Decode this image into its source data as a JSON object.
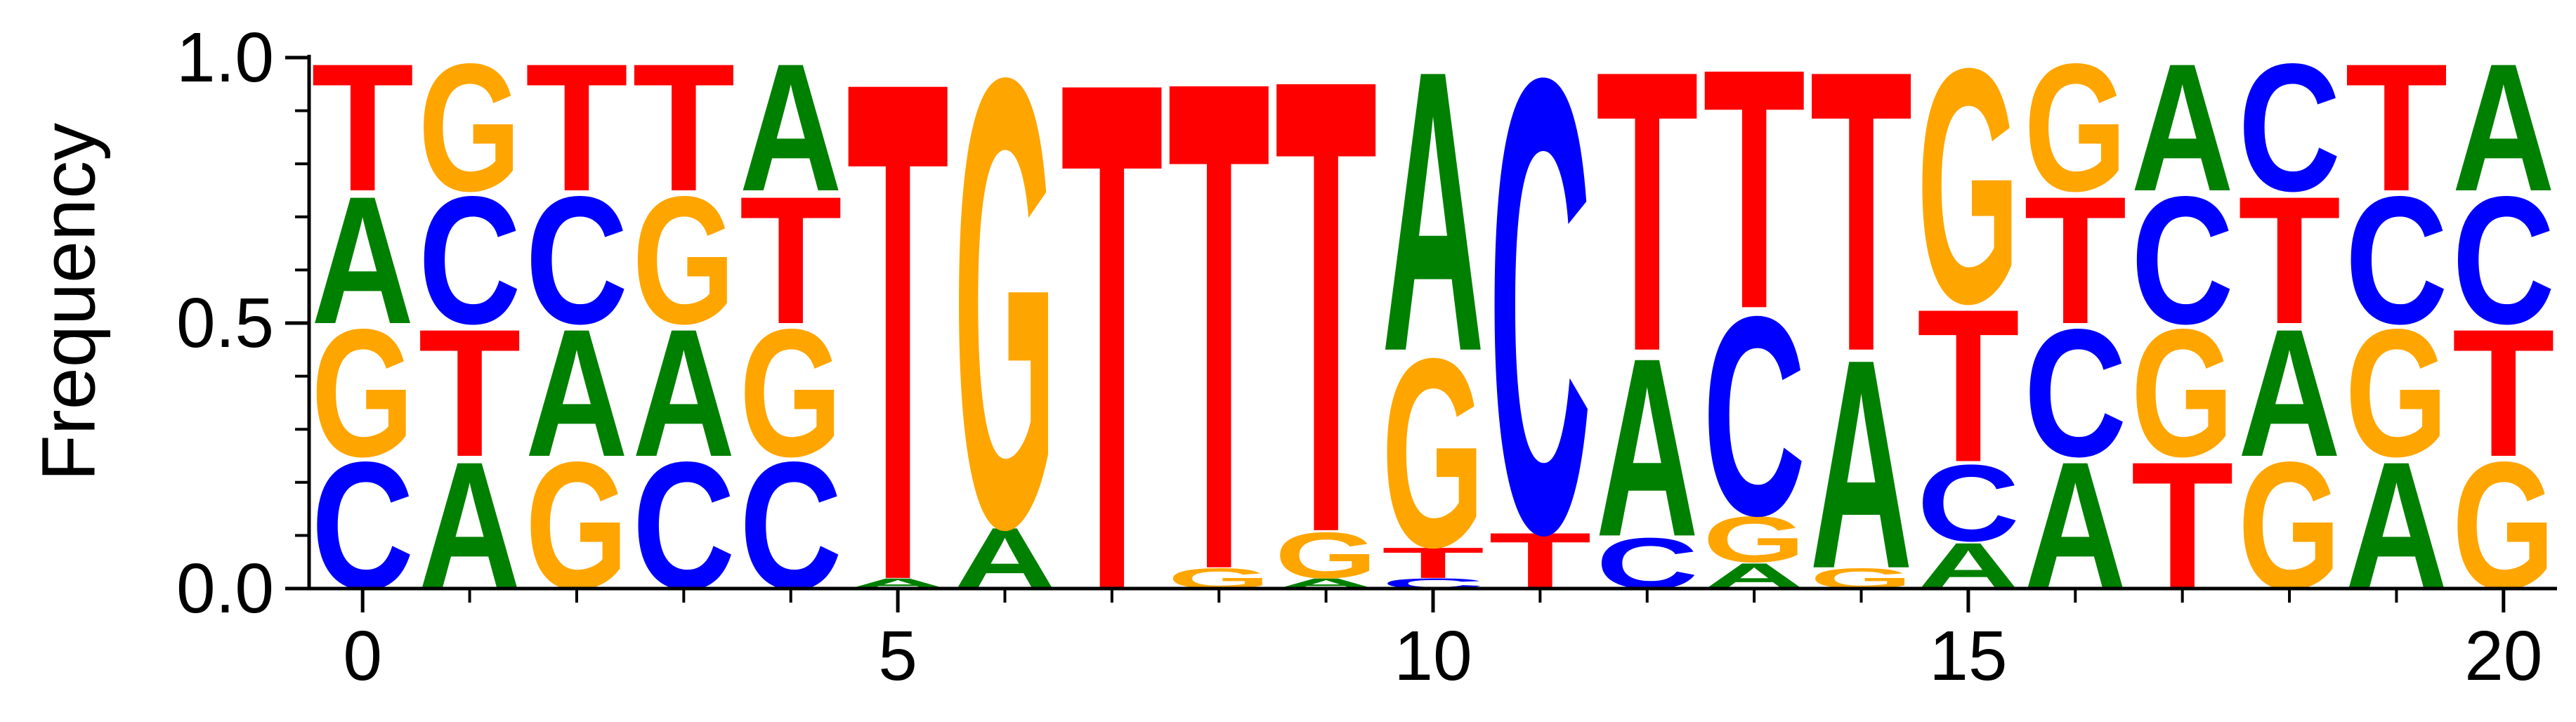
{
  "chart_data": {
    "type": "sequence_logo",
    "ylabel": "Frequency",
    "xlabel": "",
    "ylim": [
      0,
      1.0
    ],
    "xlim": [
      -0.5,
      20.5
    ],
    "y_ticks": [
      "0.0",
      "0.5",
      "1.0"
    ],
    "y_tick_values": [
      0.0,
      0.5,
      1.0
    ],
    "y_minor_tick_values": [
      0.1,
      0.2,
      0.3,
      0.4,
      0.6,
      0.7,
      0.8,
      0.9
    ],
    "x_ticks": [
      "0",
      "5",
      "10",
      "15",
      "20"
    ],
    "x_tick_values": [
      0,
      5,
      10,
      15,
      20
    ],
    "grid": false,
    "legend": "none",
    "letter_colors": {
      "A": "#008000",
      "C": "#0000ff",
      "G": "#ffa500",
      "T": "#ff0000"
    },
    "positions": [
      {
        "pos": 0,
        "letters": [
          {
            "base": "C",
            "freq": 0.25
          },
          {
            "base": "G",
            "freq": 0.25
          },
          {
            "base": "A",
            "freq": 0.25
          },
          {
            "base": "T",
            "freq": 0.25
          }
        ]
      },
      {
        "pos": 1,
        "letters": [
          {
            "base": "A",
            "freq": 0.25
          },
          {
            "base": "T",
            "freq": 0.25
          },
          {
            "base": "C",
            "freq": 0.25
          },
          {
            "base": "G",
            "freq": 0.25
          }
        ]
      },
      {
        "pos": 2,
        "letters": [
          {
            "base": "G",
            "freq": 0.25
          },
          {
            "base": "A",
            "freq": 0.25
          },
          {
            "base": "C",
            "freq": 0.25
          },
          {
            "base": "T",
            "freq": 0.25
          }
        ]
      },
      {
        "pos": 3,
        "letters": [
          {
            "base": "C",
            "freq": 0.25
          },
          {
            "base": "A",
            "freq": 0.25
          },
          {
            "base": "G",
            "freq": 0.25
          },
          {
            "base": "T",
            "freq": 0.25
          }
        ]
      },
      {
        "pos": 4,
        "letters": [
          {
            "base": "C",
            "freq": 0.25
          },
          {
            "base": "G",
            "freq": 0.25
          },
          {
            "base": "T",
            "freq": 0.25
          },
          {
            "base": "A",
            "freq": 0.25
          }
        ]
      },
      {
        "pos": 5,
        "letters": [
          {
            "base": "A",
            "freq": 0.02
          },
          {
            "base": "T",
            "freq": 0.98
          }
        ]
      },
      {
        "pos": 6,
        "letters": [
          {
            "base": "A",
            "freq": 0.12
          },
          {
            "base": "G",
            "freq": 0.88
          }
        ]
      },
      {
        "pos": 7,
        "letters": [
          {
            "base": "T",
            "freq": 1.0
          }
        ]
      },
      {
        "pos": 8,
        "letters": [
          {
            "base": "G",
            "freq": 0.04
          },
          {
            "base": "T",
            "freq": 0.96
          }
        ]
      },
      {
        "pos": 9,
        "letters": [
          {
            "base": "A",
            "freq": 0.02
          },
          {
            "base": "G",
            "freq": 0.09
          },
          {
            "base": "T",
            "freq": 0.89
          }
        ]
      },
      {
        "pos": 10,
        "letters": [
          {
            "base": "C",
            "freq": 0.02
          },
          {
            "base": "T",
            "freq": 0.06
          },
          {
            "base": "G",
            "freq": 0.37
          },
          {
            "base": "A",
            "freq": 0.55
          }
        ]
      },
      {
        "pos": 11,
        "letters": [
          {
            "base": "T",
            "freq": 0.11
          },
          {
            "base": "C",
            "freq": 0.89
          }
        ]
      },
      {
        "pos": 12,
        "letters": [
          {
            "base": "C",
            "freq": 0.1
          },
          {
            "base": "A",
            "freq": 0.35
          },
          {
            "base": "T",
            "freq": 0.55
          }
        ]
      },
      {
        "pos": 13,
        "letters": [
          {
            "base": "A",
            "freq": 0.05
          },
          {
            "base": "G",
            "freq": 0.09
          },
          {
            "base": "C",
            "freq": 0.39
          },
          {
            "base": "T",
            "freq": 0.47
          }
        ]
      },
      {
        "pos": 14,
        "letters": [
          {
            "base": "G",
            "freq": 0.04
          },
          {
            "base": "A",
            "freq": 0.41
          },
          {
            "base": "T",
            "freq": 0.55
          }
        ]
      },
      {
        "pos": 15,
        "letters": [
          {
            "base": "A",
            "freq": 0.09
          },
          {
            "base": "C",
            "freq": 0.15
          },
          {
            "base": "T",
            "freq": 0.3
          },
          {
            "base": "G",
            "freq": 0.46
          }
        ]
      },
      {
        "pos": 16,
        "letters": [
          {
            "base": "A",
            "freq": 0.25
          },
          {
            "base": "C",
            "freq": 0.25
          },
          {
            "base": "T",
            "freq": 0.25
          },
          {
            "base": "G",
            "freq": 0.25
          }
        ]
      },
      {
        "pos": 17,
        "letters": [
          {
            "base": "T",
            "freq": 0.25
          },
          {
            "base": "G",
            "freq": 0.25
          },
          {
            "base": "C",
            "freq": 0.25
          },
          {
            "base": "A",
            "freq": 0.25
          }
        ]
      },
      {
        "pos": 18,
        "letters": [
          {
            "base": "G",
            "freq": 0.25
          },
          {
            "base": "A",
            "freq": 0.25
          },
          {
            "base": "T",
            "freq": 0.25
          },
          {
            "base": "C",
            "freq": 0.25
          }
        ]
      },
      {
        "pos": 19,
        "letters": [
          {
            "base": "A",
            "freq": 0.25
          },
          {
            "base": "G",
            "freq": 0.25
          },
          {
            "base": "C",
            "freq": 0.25
          },
          {
            "base": "T",
            "freq": 0.25
          }
        ]
      },
      {
        "pos": 20,
        "letters": [
          {
            "base": "G",
            "freq": 0.25
          },
          {
            "base": "T",
            "freq": 0.25
          },
          {
            "base": "C",
            "freq": 0.25
          },
          {
            "base": "A",
            "freq": 0.25
          }
        ]
      }
    ]
  }
}
